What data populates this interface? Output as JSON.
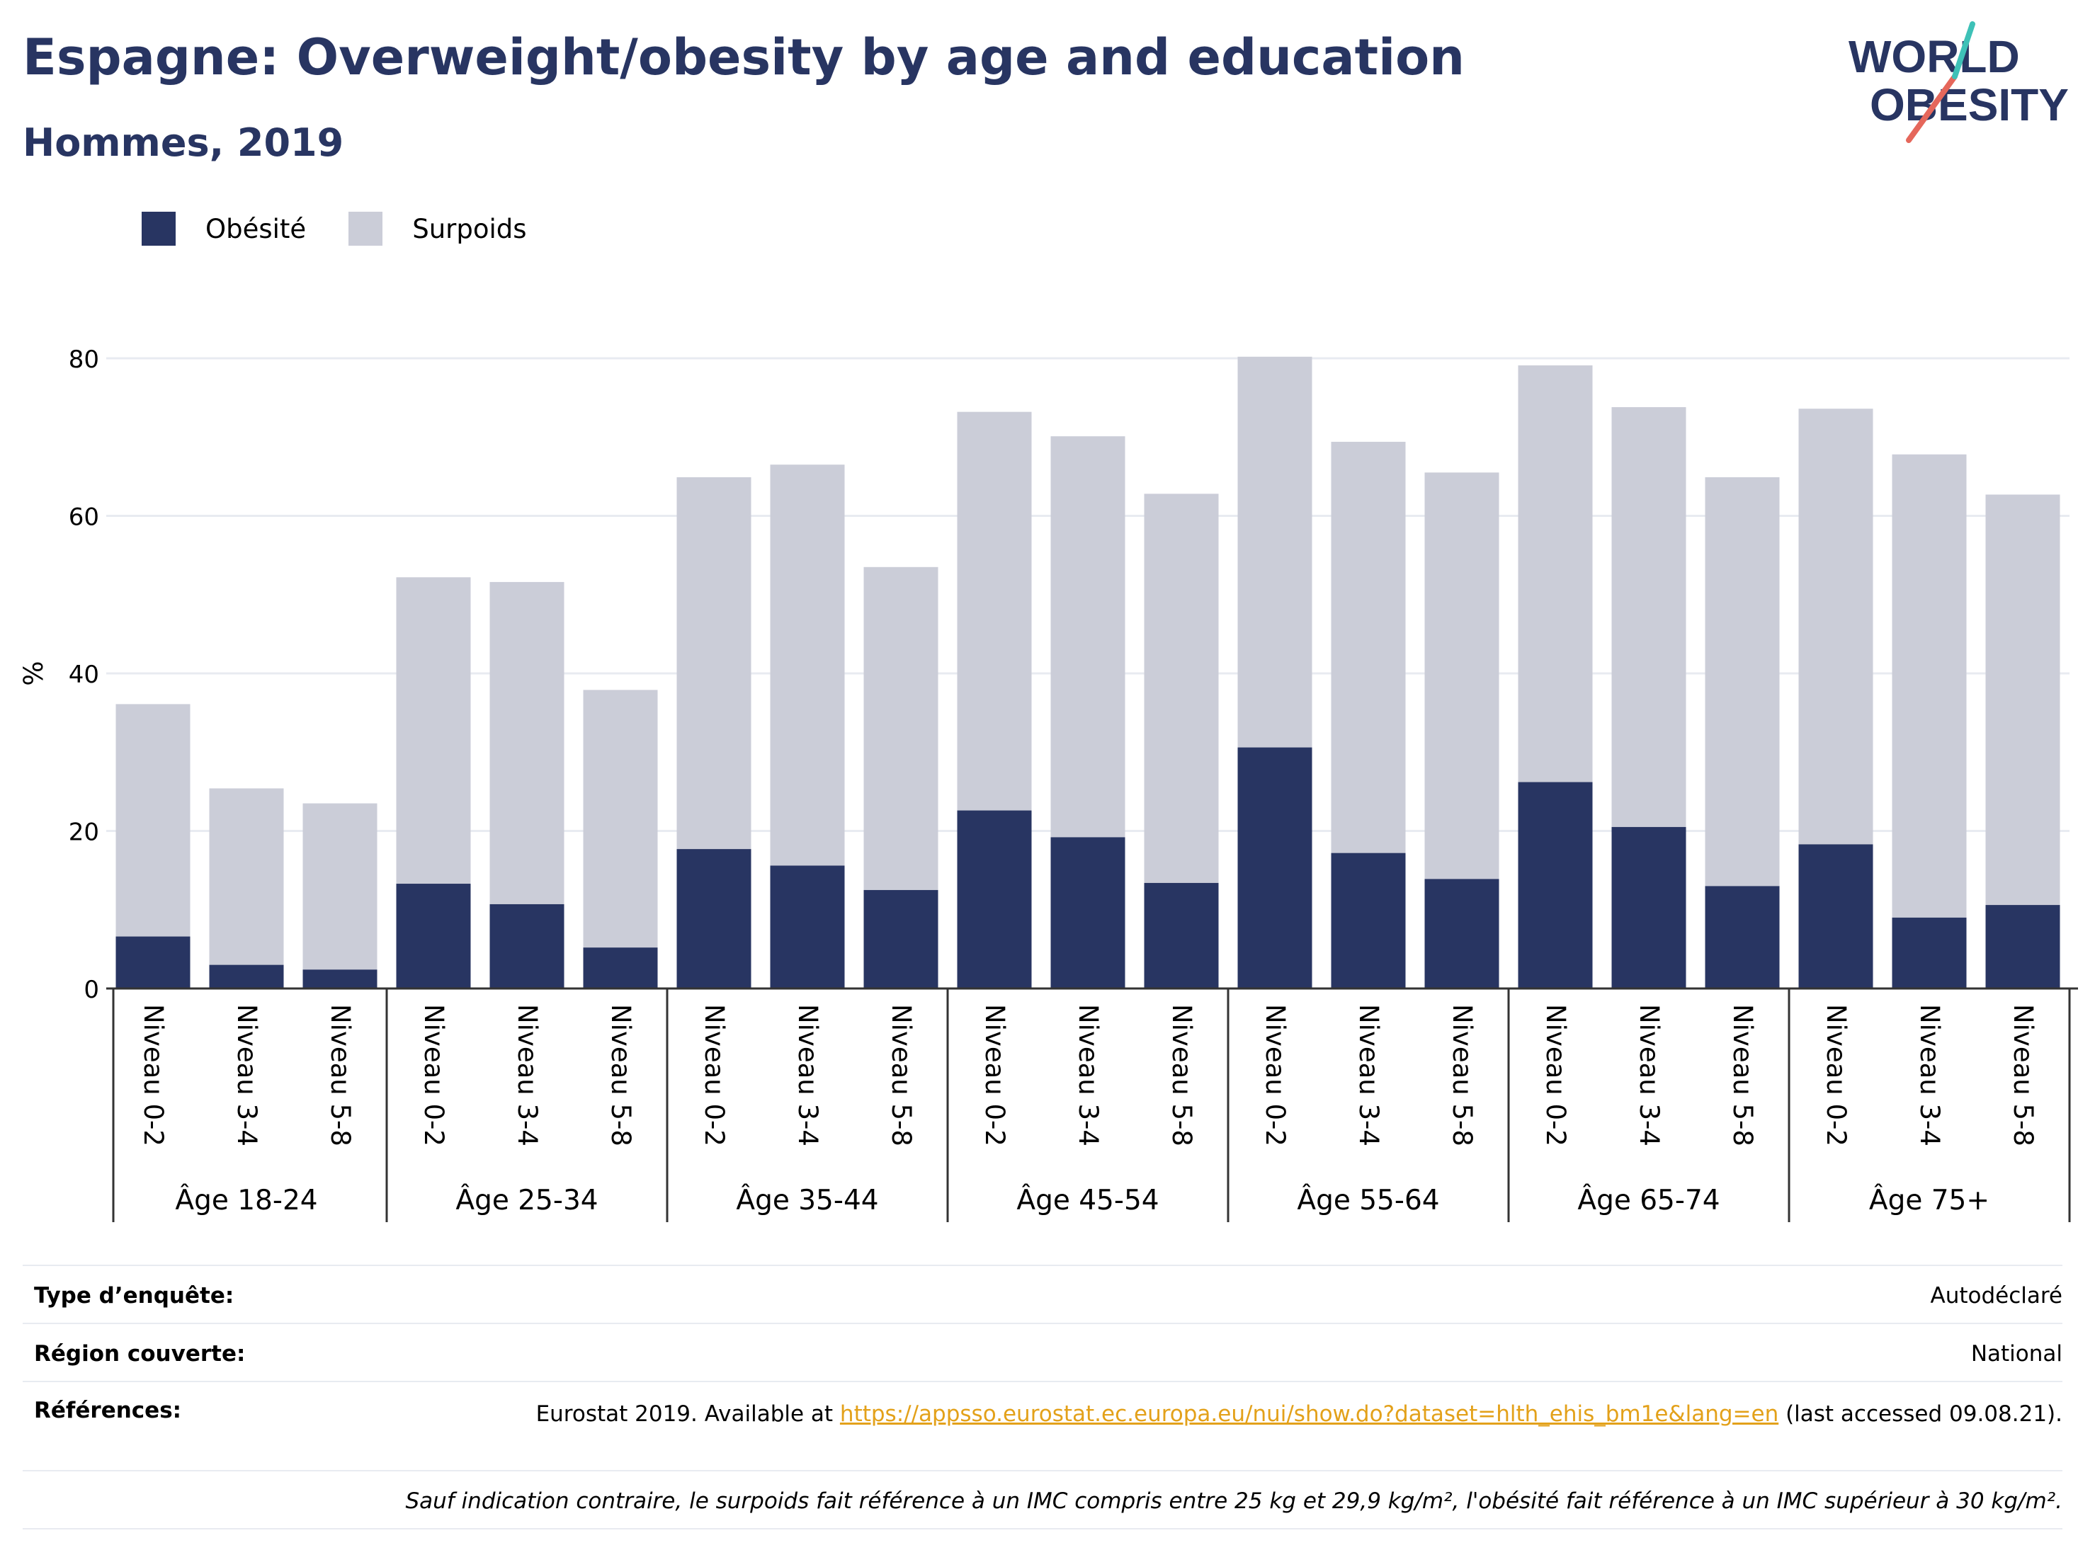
{
  "header": {
    "title": "Espagne: Overweight/obesity by age and education",
    "subtitle": "Hommes, 2019"
  },
  "logo": {
    "line1": "WORLD",
    "line2": "OBESITY"
  },
  "colors": {
    "obesity": "#283562",
    "overweight": "#cbcdd8",
    "title": "#283562",
    "link": "#e3a11a",
    "logo_teal": "#3ec1b7",
    "logo_red": "#e5675b"
  },
  "chart_data": {
    "type": "bar",
    "stacked": true,
    "ylabel": "%",
    "ylim": [
      0,
      80
    ],
    "yticks": [
      0,
      20,
      40,
      60,
      80
    ],
    "grid": true,
    "legend_position": "top-left",
    "groups": [
      "Âge 18-24",
      "Âge 25-34",
      "Âge 35-44",
      "Âge 45-54",
      "Âge 55-64",
      "Âge 65-74",
      "Âge 75+"
    ],
    "subcategories": [
      "Niveau 0-2",
      "Niveau 3-4",
      "Niveau 5-8"
    ],
    "series": [
      {
        "name": "Obésité",
        "values": [
          6.6,
          3.0,
          2.4,
          13.3,
          10.7,
          5.2,
          17.7,
          15.6,
          12.5,
          22.6,
          19.2,
          13.4,
          30.6,
          17.2,
          13.9,
          26.2,
          20.5,
          13.0,
          18.3,
          9.0,
          10.6
        ]
      },
      {
        "name": "Surpoids",
        "values": [
          29.5,
          22.4,
          21.1,
          38.9,
          40.9,
          32.7,
          47.2,
          50.9,
          41.0,
          50.6,
          50.9,
          49.4,
          49.6,
          52.2,
          51.6,
          52.9,
          53.3,
          51.9,
          55.3,
          58.8,
          52.1
        ]
      }
    ]
  },
  "info": {
    "survey_label": "Type d’enquête:",
    "survey_value": "Autodéclaré",
    "region_label": "Région couverte:",
    "region_value": "National",
    "refs_label": "Références:",
    "refs_prefix": "Eurostat 2019. Available at ",
    "refs_link": "https://appsso.eurostat.ec.europa.eu/nui/show.do?dataset=hlth_ehis_bm1e&lang=en",
    "refs_suffix": " (last accessed 09.08.21).",
    "note": "Sauf indication contraire, le surpoids fait référence à un IMC compris entre 25 kg et 29,9 kg/m², l'obésité fait référence à un IMC supérieur à 30 kg/m²."
  }
}
